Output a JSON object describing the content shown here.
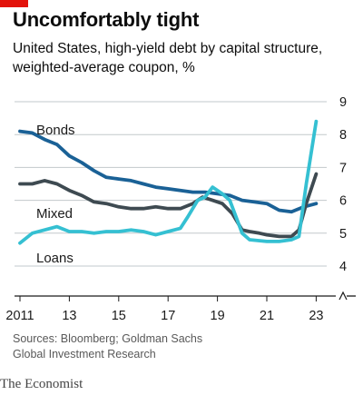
{
  "header": {
    "title": "Uncomfortably tight",
    "subtitle": "United States, high-yield debt by capital structure, weighted-average coupon, %"
  },
  "footer": {
    "source": "Sources: Bloomberg; Goldman Sachs Global Investment Research",
    "brand": "The Economist"
  },
  "colors": {
    "accent_red": "#e3120b",
    "bonds": "#1a6196",
    "mixed": "#3e4a51",
    "loans": "#35c0d2",
    "grid": "#c2c8cc"
  },
  "chart_data": {
    "type": "line",
    "title": "Uncomfortably tight",
    "subtitle": "United States, high-yield debt by capital structure, weighted-average coupon, %",
    "xlabel": "",
    "ylabel": "",
    "xlim": [
      2011.0,
      2023.5
    ],
    "ylim": [
      3.5,
      9
    ],
    "x_ticks": [
      2011,
      2013,
      2015,
      2017,
      2019,
      2021,
      2023
    ],
    "x_tick_labels": [
      "2011",
      "13",
      "15",
      "17",
      "19",
      "21",
      "23"
    ],
    "y_ticks": [
      4,
      5,
      6,
      7,
      8,
      9
    ],
    "y_tick_labels": [
      "4",
      "5",
      "6",
      "7",
      "8",
      "9"
    ],
    "y_axis_side": "right",
    "y_axis_break": true,
    "grid": true,
    "legend": "inline labels",
    "series": [
      {
        "name": "Bonds",
        "color": "#1a6196",
        "x": [
          2011.0,
          2011.5,
          2012.0,
          2012.5,
          2013.0,
          2013.5,
          2014.0,
          2014.5,
          2015.0,
          2015.5,
          2016.0,
          2016.5,
          2017.0,
          2017.5,
          2018.0,
          2018.5,
          2019.0,
          2019.5,
          2020.0,
          2020.5,
          2021.0,
          2021.5,
          2022.0,
          2022.5,
          2023.0
        ],
        "y": [
          8.1,
          8.05,
          7.85,
          7.7,
          7.35,
          7.15,
          6.9,
          6.7,
          6.65,
          6.6,
          6.5,
          6.4,
          6.35,
          6.3,
          6.25,
          6.25,
          6.2,
          6.15,
          6.0,
          5.95,
          5.9,
          5.7,
          5.65,
          5.8,
          5.9
        ]
      },
      {
        "name": "Mixed",
        "color": "#3e4a51",
        "x": [
          2011.0,
          2011.5,
          2012.0,
          2012.5,
          2013.0,
          2013.5,
          2014.0,
          2014.5,
          2015.0,
          2015.5,
          2016.0,
          2016.5,
          2017.0,
          2017.5,
          2018.0,
          2018.4,
          2018.8,
          2019.2,
          2019.6,
          2020.0,
          2020.3,
          2020.7,
          2021.0,
          2021.5,
          2022.0,
          2022.3,
          2022.6,
          2023.0
        ],
        "y": [
          6.5,
          6.5,
          6.6,
          6.5,
          6.3,
          6.15,
          5.95,
          5.9,
          5.8,
          5.75,
          5.75,
          5.8,
          5.75,
          5.75,
          5.9,
          6.1,
          6.0,
          5.9,
          5.6,
          5.1,
          5.05,
          5.0,
          4.95,
          4.9,
          4.9,
          5.1,
          5.9,
          6.8
        ]
      },
      {
        "name": "Loans",
        "color": "#35c0d2",
        "x": [
          2011.0,
          2011.5,
          2012.0,
          2012.5,
          2013.0,
          2013.5,
          2014.0,
          2014.5,
          2015.0,
          2015.5,
          2016.0,
          2016.5,
          2017.0,
          2017.5,
          2017.8,
          2018.2,
          2018.5,
          2018.8,
          2019.2,
          2019.5,
          2019.8,
          2020.0,
          2020.3,
          2021.0,
          2021.5,
          2022.0,
          2022.3,
          2022.6,
          2023.0
        ],
        "y": [
          4.7,
          5.0,
          5.1,
          5.2,
          5.05,
          5.05,
          5.0,
          5.05,
          5.05,
          5.1,
          5.05,
          4.95,
          5.05,
          5.15,
          5.5,
          6.0,
          6.1,
          6.4,
          6.2,
          6.0,
          5.4,
          5.0,
          4.8,
          4.75,
          4.75,
          4.8,
          4.9,
          6.5,
          8.4
        ]
      }
    ]
  }
}
